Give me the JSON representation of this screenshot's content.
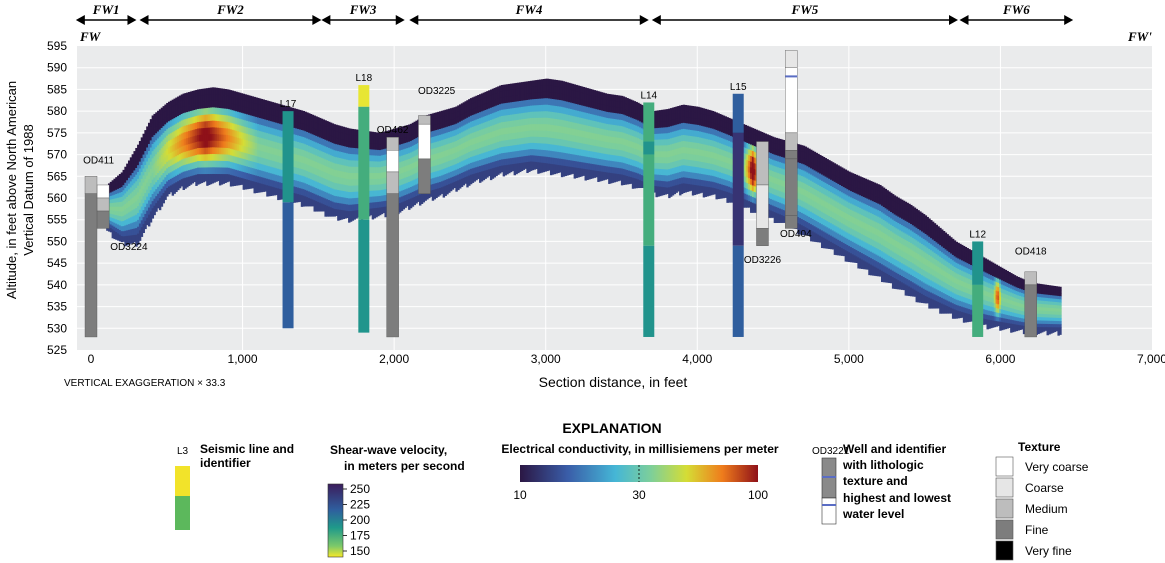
{
  "section": {
    "start_label": "FW",
    "end_label": "FW'",
    "vertical_exaggeration": "VERTICAL EXAGGERATION × 33.3",
    "zones": [
      {
        "label": "FW1",
        "from": -100,
        "to": 300
      },
      {
        "label": "FW2",
        "from": 320,
        "to": 1520
      },
      {
        "label": "FW3",
        "from": 1520,
        "to": 2070
      },
      {
        "label": "FW4",
        "from": 2100,
        "to": 3680
      },
      {
        "label": "FW5",
        "from": 3700,
        "to": 5720
      },
      {
        "label": "FW6",
        "from": 5730,
        "to": 6480
      }
    ]
  },
  "axes": {
    "xlabel": "Section distance, in feet",
    "ylabel_line1": "Altitude, in feet above North American",
    "ylabel_line2": "Vertical Datum of 1988",
    "xlim": [
      0,
      7000
    ],
    "ylim": [
      525,
      595
    ],
    "xticks": [
      {
        "v": 0,
        "t": "0"
      },
      {
        "v": 1000,
        "t": "1,000"
      },
      {
        "v": 2000,
        "t": "2,000"
      },
      {
        "v": 3000,
        "t": "3,000"
      },
      {
        "v": 4000,
        "t": "4,000"
      },
      {
        "v": 5000,
        "t": "5,000"
      },
      {
        "v": 6000,
        "t": "6,000"
      },
      {
        "v": 7000,
        "t": "7,000"
      }
    ],
    "yticks": [
      {
        "v": 525,
        "t": "525"
      },
      {
        "v": 530,
        "t": "530"
      },
      {
        "v": 535,
        "t": "535"
      },
      {
        "v": 540,
        "t": "540"
      },
      {
        "v": 545,
        "t": "545"
      },
      {
        "v": 550,
        "t": "550"
      },
      {
        "v": 555,
        "t": "555"
      },
      {
        "v": 560,
        "t": "560"
      },
      {
        "v": 565,
        "t": "565"
      },
      {
        "v": 570,
        "t": "570"
      },
      {
        "v": 575,
        "t": "575"
      },
      {
        "v": 580,
        "t": "580"
      },
      {
        "v": 585,
        "t": "585"
      },
      {
        "v": 590,
        "t": "590"
      },
      {
        "v": 595,
        "t": "595"
      }
    ]
  },
  "chart_data": {
    "type": "heatmap",
    "description_units": "electrical conductivity, mS/m",
    "profile": {
      "x": [
        100,
        200,
        300,
        400,
        500,
        600,
        700,
        800,
        900,
        1000,
        1100,
        1200,
        1300,
        1400,
        1500,
        1600,
        1700,
        1800,
        1900,
        2000,
        2100,
        2200,
        2300,
        2400,
        2500,
        2600,
        2700,
        2800,
        2900,
        3000,
        3100,
        3200,
        3300,
        3400,
        3500,
        3600,
        3700,
        3800,
        3900,
        4000,
        4100,
        4200,
        4300,
        4400,
        4500,
        4600,
        4700,
        4800,
        4900,
        5000,
        5100,
        5200,
        5300,
        5400,
        5500,
        5600,
        5700,
        5800,
        5900,
        6000,
        6100,
        6200,
        6300,
        6400
      ],
      "top": [
        563,
        566,
        572,
        579,
        582,
        584,
        585,
        585.5,
        585,
        584,
        583,
        582,
        581,
        580,
        578.5,
        577,
        576,
        575.5,
        575,
        576,
        577,
        579,
        580,
        581,
        583,
        584.5,
        586,
        586.5,
        587,
        587.5,
        587,
        586,
        585,
        584,
        583.5,
        582,
        580,
        580.5,
        581.5,
        581,
        580,
        578.5,
        577,
        575.5,
        574,
        573,
        572,
        570,
        568,
        566,
        564.5,
        563,
        560.5,
        558.5,
        556,
        553,
        550,
        548,
        546,
        544,
        542,
        540.5,
        540,
        539.5
      ],
      "bottom": [
        553,
        550,
        550,
        556,
        561,
        563,
        564,
        564,
        564,
        563,
        562,
        561,
        560,
        559,
        557.5,
        556,
        555.5,
        556,
        556.5,
        557,
        558.5,
        560,
        561,
        562.5,
        564,
        565,
        566,
        566.5,
        567,
        566.5,
        566,
        565.5,
        565,
        564.5,
        564,
        563,
        561.5,
        561,
        562,
        561.5,
        561,
        560,
        558.5,
        557,
        555.5,
        554,
        552,
        550,
        548,
        546,
        544,
        542,
        540,
        538,
        536,
        534.5,
        533,
        532,
        531,
        530.5,
        530,
        529.5,
        529.5,
        529.5
      ],
      "hot_zones": [
        {
          "x0": 400,
          "x1": 1100,
          "peak": 80
        },
        {
          "x0": 4300,
          "x1": 4420,
          "peak": 100
        },
        {
          "x0": 5950,
          "x1": 6000,
          "peak": 60
        }
      ]
    },
    "seismic_lines": [
      {
        "id": "L17",
        "x": 1300,
        "segments": [
          {
            "top": 580,
            "bottom": 559,
            "v": 193
          },
          {
            "top": 559,
            "bottom": 530,
            "v": 215
          }
        ]
      },
      {
        "id": "L18",
        "x": 1800,
        "segments": [
          {
            "top": 586,
            "bottom": 581,
            "v": 152
          },
          {
            "top": 581,
            "bottom": 555,
            "v": 180
          },
          {
            "top": 555,
            "bottom": 529,
            "v": 192
          }
        ]
      },
      {
        "id": "L14",
        "x": 3680,
        "segments": [
          {
            "top": 582,
            "bottom": 573,
            "v": 180
          },
          {
            "top": 573,
            "bottom": 570,
            "v": 193
          },
          {
            "top": 570,
            "bottom": 549,
            "v": 180
          },
          {
            "top": 549,
            "bottom": 528,
            "v": 193
          }
        ]
      },
      {
        "id": "L15",
        "x": 4270,
        "segments": [
          {
            "top": 584,
            "bottom": 575,
            "v": 215
          },
          {
            "top": 575,
            "bottom": 549,
            "v": 238
          },
          {
            "top": 549,
            "bottom": 528,
            "v": 215
          }
        ]
      },
      {
        "id": "L12",
        "x": 5850,
        "segments": [
          {
            "top": 550,
            "bottom": 540,
            "v": 193
          },
          {
            "top": 540,
            "bottom": 528,
            "v": 180
          }
        ]
      }
    ],
    "wells": [
      {
        "id": "OD411",
        "x": 0,
        "label_x": 50,
        "label_y": 568,
        "segments": [
          {
            "top": 565,
            "bottom": 561,
            "texture": "Medium"
          },
          {
            "top": 561,
            "bottom": 528,
            "texture": "Fine"
          }
        ]
      },
      {
        "id": "OD3224",
        "x": 80,
        "label_x": 250,
        "label_y": 548,
        "segments": [
          {
            "top": 563,
            "bottom": 560,
            "texture": "Very coarse"
          },
          {
            "top": 560,
            "bottom": 557,
            "texture": "Medium"
          },
          {
            "top": 557,
            "bottom": 553,
            "texture": "Fine"
          }
        ]
      },
      {
        "id": "OD3225",
        "x": 2200,
        "label_x": 2280,
        "label_y": 584,
        "segments": [
          {
            "top": 579,
            "bottom": 577,
            "texture": "Medium"
          },
          {
            "top": 577,
            "bottom": 569,
            "texture": "Very coarse"
          },
          {
            "top": 569,
            "bottom": 561,
            "texture": "Fine"
          }
        ]
      },
      {
        "id": "OD462",
        "x": 1990,
        "label_x": 1990,
        "label_y": 575,
        "segments": [
          {
            "top": 574,
            "bottom": 571,
            "texture": "Medium"
          },
          {
            "top": 571,
            "bottom": 566,
            "texture": "Very coarse"
          },
          {
            "top": 566,
            "bottom": 561,
            "texture": "Medium"
          },
          {
            "top": 561,
            "bottom": 528,
            "texture": "Fine"
          }
        ]
      },
      {
        "id": "OD404",
        "x": 4620,
        "label_x": 4650,
        "label_y": 551,
        "segments": [
          {
            "top": 594,
            "bottom": 590,
            "texture": "Coarse"
          },
          {
            "top": 590,
            "bottom": 575,
            "texture": "Very coarse"
          },
          {
            "top": 575,
            "bottom": 571,
            "texture": "Medium"
          },
          {
            "top": 571,
            "bottom": 569,
            "texture": "Fine"
          },
          {
            "top": 569,
            "bottom": 556,
            "texture": "Fine"
          },
          {
            "top": 556,
            "bottom": 553,
            "texture": "Fine"
          }
        ],
        "water_levels": [
          588
        ]
      },
      {
        "id": "OD3226",
        "x": 4430,
        "label_x": 4430,
        "label_y": 545,
        "segments": [
          {
            "top": 573,
            "bottom": 563,
            "texture": "Medium"
          },
          {
            "top": 563,
            "bottom": 553,
            "texture": "Coarse"
          },
          {
            "top": 553,
            "bottom": 549,
            "texture": "Fine"
          }
        ]
      },
      {
        "id": "OD418",
        "x": 6200,
        "label_x": 6200,
        "label_y": 547,
        "segments": [
          {
            "top": 543,
            "bottom": 540,
            "texture": "Medium"
          },
          {
            "top": 540,
            "bottom": 528,
            "texture": "Fine"
          }
        ]
      }
    ]
  },
  "explanation": {
    "title": "EXPLANATION",
    "seismic": {
      "sample_id": "L3",
      "label_line1": "Seismic line and",
      "label_line2": "identifier"
    },
    "velocity": {
      "title_line1": "Shear-wave velocity,",
      "title_line2": "in meters per second",
      "ticks": [
        "250",
        "225",
        "200",
        "175",
        "150"
      ],
      "min": 150,
      "max": 250
    },
    "conductivity": {
      "title": "Electrical conductivity, in millisiemens per meter",
      "ticks": [
        "10",
        "30",
        "100"
      ]
    },
    "well": {
      "sample_id": "OD3221",
      "label_lines": [
        "Well and identifier",
        "with lithologic",
        "texture and",
        "highest and lowest",
        "water level"
      ]
    },
    "texture": {
      "title": "Texture",
      "items": [
        {
          "label": "Very coarse",
          "color": "#ffffff"
        },
        {
          "label": "Coarse",
          "color": "#e6e6e6"
        },
        {
          "label": "Medium",
          "color": "#bdbdbd"
        },
        {
          "label": "Fine",
          "color": "#7d7d7d"
        },
        {
          "label": "Very fine",
          "color": "#000000"
        }
      ]
    }
  },
  "colors": {
    "plot_bg": "#eaebec",
    "surface_band": "#2b1744",
    "water_level": "#5a6dc4"
  }
}
